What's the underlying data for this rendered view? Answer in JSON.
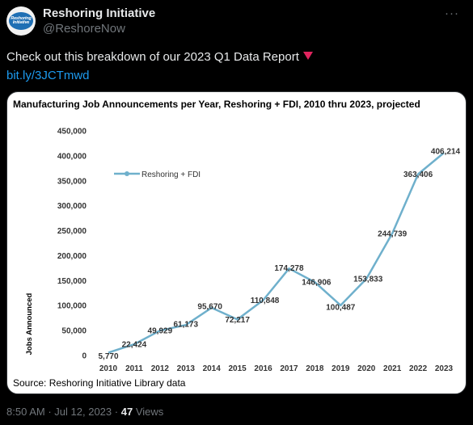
{
  "tweet": {
    "display_name": "Reshoring Initiative",
    "handle": "@ReshoreNow",
    "avatar_text": "Reshoring Initiative",
    "text": "Check out this breakdown of our 2023 Q1 Data Report",
    "link": "bit.ly/3JCTmwd",
    "time": "8:50 AM",
    "date": "Jul 12, 2023",
    "separator": "·",
    "views_count": "47",
    "views_label": "Views",
    "accent_color": "#e0245e",
    "link_color": "#1d9bf0"
  },
  "chart_data": {
    "type": "line",
    "title": "Manufacturing Job Announcements per Year, Reshoring + FDI, 2010 thru 2023, projected",
    "xlabel": "",
    "ylabel": "Jobs Announced",
    "source": "Source: Reshoring Initiative Library data",
    "grid": false,
    "legend_position": "upper-left",
    "x": [
      "2010",
      "2011",
      "2012",
      "2013",
      "2014",
      "2015",
      "2016",
      "2017",
      "2018",
      "2019",
      "2020",
      "2021",
      "2022",
      "2023"
    ],
    "y_ticks": [
      "0",
      "50,000",
      "100,000",
      "150,000",
      "200,000",
      "250,000",
      "300,000",
      "350,000",
      "400,000",
      "450,000"
    ],
    "ylim": [
      0,
      450000
    ],
    "series": [
      {
        "name": "Reshoring + FDI",
        "color": "#6fb0cc",
        "values": [
          5770,
          22424,
          49929,
          61173,
          95670,
          72217,
          110848,
          174278,
          146906,
          100487,
          153833,
          244739,
          363406,
          406214
        ],
        "labels": [
          "5,770",
          "22,424",
          "49,929",
          "61,173",
          "95,670",
          "72,217",
          "110,848",
          "174,278",
          "146,906",
          "100,487",
          "153,833",
          "244,739",
          "363,406",
          "406,214"
        ]
      }
    ]
  }
}
